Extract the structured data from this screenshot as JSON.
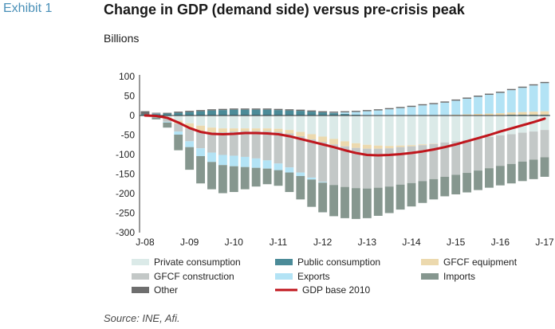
{
  "header": {
    "exhibit": "Exhibit 1",
    "title": "Change in GDP (demand side) versus pre-crisis peak",
    "unit": "Billions"
  },
  "source": "Source: INE, Afi.",
  "chart_data": {
    "type": "bar",
    "stacked": true,
    "ylim": [
      -300,
      100
    ],
    "yticks": [
      100,
      50,
      0,
      -50,
      -100,
      -150,
      -200,
      -250,
      -300
    ],
    "xticks": [
      {
        "label": "J-08",
        "index": 0
      },
      {
        "label": "J-09",
        "index": 4
      },
      {
        "label": "J-10",
        "index": 8
      },
      {
        "label": "J-11",
        "index": 12
      },
      {
        "label": "J-12",
        "index": 16
      },
      {
        "label": "J-13",
        "index": 20
      },
      {
        "label": "J-14",
        "index": 24
      },
      {
        "label": "J-15",
        "index": 28
      },
      {
        "label": "J-16",
        "index": 32
      },
      {
        "label": "J-17",
        "index": 36
      }
    ],
    "n_periods": 37,
    "grid": false,
    "legend_position": "bottom",
    "series": [
      {
        "name": "Private consumption",
        "color": "#dbeae8",
        "values": [
          0,
          -1,
          -5,
          -13,
          -20,
          -26,
          -31,
          -33,
          -33,
          -33,
          -33,
          -33,
          -34,
          -37,
          -42,
          -48,
          -54,
          -60,
          -66,
          -71,
          -75,
          -77,
          -78,
          -77,
          -76,
          -74,
          -72,
          -69,
          -66,
          -63,
          -59,
          -55,
          -51,
          -48,
          -44,
          -41,
          -37
        ]
      },
      {
        "name": "Public consumption",
        "color": "#4b8b98",
        "values": [
          3,
          4,
          5,
          7,
          9,
          11,
          13,
          14,
          15,
          15,
          15,
          15,
          14,
          13,
          12,
          10,
          8,
          6,
          4,
          2,
          1,
          0,
          0,
          0,
          0,
          1,
          1,
          1,
          1,
          1,
          1,
          1,
          1,
          2,
          2,
          2,
          2
        ]
      },
      {
        "name": "GFCF equipment",
        "color": "#ecd9ae",
        "values": [
          0,
          -1,
          -3,
          -8,
          -13,
          -14,
          -12,
          -10,
          -8,
          -7,
          -7,
          -7,
          -8,
          -9,
          -11,
          -13,
          -14,
          -14,
          -13,
          -12,
          -10,
          -8,
          -6,
          -4,
          -3,
          -2,
          -1,
          0,
          1,
          2,
          3,
          4,
          5,
          6,
          7,
          8,
          9
        ]
      },
      {
        "name": "GFCF construction",
        "color": "#c3c8c7",
        "values": [
          0,
          -3,
          -8,
          -20,
          -33,
          -44,
          -52,
          -58,
          -62,
          -66,
          -70,
          -75,
          -81,
          -87,
          -93,
          -98,
          -102,
          -104,
          -104,
          -103,
          -102,
          -100,
          -98,
          -96,
          -94,
          -92,
          -90,
          -88,
          -86,
          -84,
          -82,
          -80,
          -78,
          -76,
          -74,
          -72,
          -70
        ]
      },
      {
        "name": "Exports",
        "color": "#b3e3f5",
        "values": [
          0,
          1,
          -2,
          -8,
          -15,
          -20,
          -24,
          -26,
          -27,
          -26,
          -24,
          -21,
          -17,
          -13,
          -9,
          -5,
          -2,
          1,
          4,
          7,
          10,
          13,
          16,
          19,
          22,
          25,
          28,
          32,
          36,
          40,
          44,
          48,
          52,
          57,
          62,
          67,
          72
        ]
      },
      {
        "name": "Imports",
        "color": "#86978f",
        "values": [
          0,
          -5,
          -13,
          -40,
          -58,
          -70,
          -70,
          -72,
          -66,
          -57,
          -48,
          -40,
          -40,
          -50,
          -60,
          -70,
          -76,
          -80,
          -80,
          -79,
          -76,
          -72,
          -68,
          -64,
          -60,
          -56,
          -52,
          -50,
          -50,
          -50,
          -50,
          -50,
          -50,
          -50,
          -50,
          -50,
          -50
        ]
      },
      {
        "name": "Other",
        "color": "#6e6e6e",
        "values": [
          8,
          2,
          2,
          3,
          3,
          3,
          3,
          3,
          3,
          3,
          3,
          3,
          3,
          3,
          3,
          3,
          3,
          3,
          3,
          3,
          3,
          3,
          3,
          3,
          3,
          3,
          3,
          3,
          3,
          3,
          3,
          3,
          3,
          3,
          3,
          3,
          3
        ]
      }
    ],
    "line": {
      "name": "GDP base 2010",
      "color": "#c0161d",
      "values": [
        0,
        -1,
        -6,
        -18,
        -32,
        -42,
        -47,
        -48,
        -47,
        -45,
        -45,
        -46,
        -48,
        -53,
        -60,
        -67,
        -74,
        -81,
        -89,
        -96,
        -101,
        -102,
        -101,
        -99,
        -96,
        -92,
        -87,
        -81,
        -74,
        -66,
        -58,
        -50,
        -41,
        -33,
        -25,
        -17,
        -8
      ]
    }
  }
}
